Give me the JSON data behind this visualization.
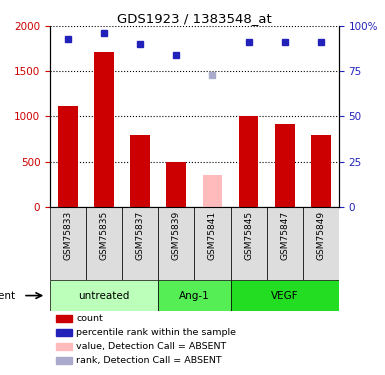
{
  "title": "GDS1923 / 1383548_at",
  "samples": [
    "GSM75833",
    "GSM75835",
    "GSM75837",
    "GSM75839",
    "GSM75841",
    "GSM75845",
    "GSM75847",
    "GSM75849"
  ],
  "counts": [
    1120,
    1720,
    790,
    500,
    null,
    1010,
    920,
    800
  ],
  "counts_absent": [
    null,
    null,
    null,
    null,
    350,
    null,
    null,
    null
  ],
  "ranks": [
    93,
    96,
    90,
    84,
    null,
    91,
    91,
    91
  ],
  "ranks_absent": [
    null,
    null,
    null,
    null,
    73,
    null,
    null,
    null
  ],
  "bar_color": "#cc0000",
  "bar_absent_color": "#ffbbbb",
  "rank_color": "#2222bb",
  "rank_absent_color": "#aaaacc",
  "ylim_left": [
    0,
    2000
  ],
  "yticks_left": [
    0,
    500,
    1000,
    1500,
    2000
  ],
  "ytick_labels_left": [
    "0",
    "500",
    "1000",
    "1500",
    "2000"
  ],
  "yticks_right": [
    0,
    25,
    50,
    75,
    100
  ],
  "ytick_labels_right": [
    "0",
    "25",
    "50",
    "75",
    "100%"
  ],
  "groups": [
    {
      "label": "untreated",
      "indices": [
        0,
        1,
        2
      ],
      "color": "#bbffbb"
    },
    {
      "label": "Ang-1",
      "indices": [
        3,
        4
      ],
      "color": "#55ee55"
    },
    {
      "label": "VEGF",
      "indices": [
        5,
        6,
        7
      ],
      "color": "#22dd22"
    }
  ],
  "agent_label": "agent",
  "legend": [
    {
      "label": "count",
      "color": "#cc0000"
    },
    {
      "label": "percentile rank within the sample",
      "color": "#2222bb"
    },
    {
      "label": "value, Detection Call = ABSENT",
      "color": "#ffbbbb"
    },
    {
      "label": "rank, Detection Call = ABSENT",
      "color": "#aaaacc"
    }
  ],
  "bar_width": 0.55
}
